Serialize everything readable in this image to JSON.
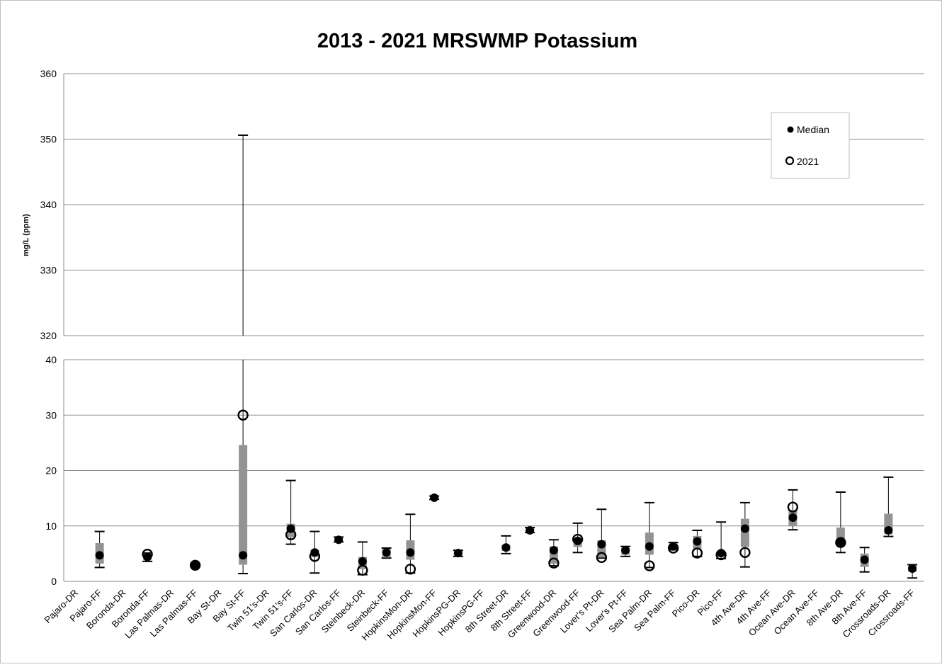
{
  "chart_data": {
    "type": "boxplot",
    "title": "2013 - 2021 MRSWMP Potassium",
    "ylabel": "mg/L (ppm)",
    "xlabel": "",
    "y_axis": {
      "broken": true,
      "upper_range": [
        320,
        360
      ],
      "upper_ticks": [
        "360",
        "350",
        "340",
        "330",
        "320"
      ],
      "lower_range": [
        0,
        40
      ],
      "lower_ticks": [
        "40",
        "30",
        "20",
        "10",
        "0"
      ]
    },
    "grid": true,
    "legend": {
      "placement": "top-right",
      "entries": [
        {
          "label": "Median",
          "marker": "filled-circle"
        },
        {
          "label": "2021",
          "marker": "open-circle"
        }
      ]
    },
    "categories": [
      "Pajaro-DR",
      "Pajaro-FF",
      "Boronda-DR",
      "Boronda-FF",
      "Las Palmas-DR",
      "Las Palmas-FF",
      "Bay St-DR",
      "Bay St-FF",
      "Twin 51's-DR",
      "Twin 51's-FF",
      "San Carlos-DR",
      "San Carlos-FF",
      "Steinbeck-DR",
      "Steinbeck-FF",
      "HopkinsMon-DR",
      "HopkinsMon-FF",
      "HopkinsPG-DR",
      "HopkinsPG-FF",
      "8th Street-DR",
      "8th Street-FF",
      "Greenwood-DR",
      "Greenwood-FF",
      "Lover's Pt-DR",
      "Lover's Pt-FF",
      "Sea Palm-DR",
      "Sea Palm-FF",
      "Pico-DR",
      "Pico-FF",
      "4th Ave-DR",
      "4th Ave-FF",
      "Ocean Ave-DR",
      "Ocean Ave-FF",
      "8th Ave-DR",
      "8th Ave-FF",
      "Crossroads-DR",
      "Crossroads-FF"
    ],
    "series": [
      {
        "name": "Median",
        "values": [
          null,
          4.7,
          null,
          4.4,
          null,
          2.9,
          null,
          4.7,
          null,
          9.5,
          5.2,
          7.5,
          3.6,
          5.2,
          5.2,
          15.1,
          5.1,
          null,
          6.1,
          9.2,
          5.6,
          7.3,
          6.7,
          5.6,
          6.3,
          6.3,
          7.2,
          5.1,
          9.5,
          null,
          11.5,
          null,
          7.0,
          3.9,
          9.2,
          2.3
        ]
      },
      {
        "name": "2021",
        "values": [
          null,
          null,
          null,
          4.9,
          null,
          2.9,
          null,
          30.0,
          null,
          8.4,
          4.5,
          null,
          2.0,
          null,
          2.2,
          null,
          null,
          null,
          null,
          null,
          3.3,
          7.6,
          4.3,
          null,
          2.8,
          6.0,
          5.1,
          4.8,
          5.2,
          null,
          13.4,
          null,
          7.0,
          null,
          null,
          null
        ]
      },
      {
        "name": "Q1",
        "values": [
          null,
          3.2,
          null,
          3.9,
          null,
          2.7,
          null,
          3.0,
          null,
          8.0,
          4.4,
          7.2,
          2.2,
          4.3,
          3.9,
          14.9,
          4.6,
          null,
          5.5,
          8.9,
          3.2,
          6.2,
          4.3,
          4.8,
          4.8,
          5.8,
          5.8,
          4.5,
          6.2,
          null,
          10.0,
          null,
          6.2,
          2.6,
          8.5,
          1.7
        ]
      },
      {
        "name": "Q3",
        "values": [
          null,
          6.9,
          null,
          4.7,
          null,
          3.1,
          null,
          24.6,
          null,
          10.4,
          5.7,
          7.8,
          4.4,
          5.8,
          7.4,
          15.3,
          5.4,
          null,
          6.6,
          9.5,
          6.3,
          7.8,
          7.4,
          6.0,
          8.8,
          6.8,
          8.2,
          5.4,
          11.3,
          null,
          12.9,
          null,
          9.7,
          5.0,
          12.2,
          2.8
        ]
      },
      {
        "name": "Min",
        "values": [
          null,
          2.5,
          null,
          3.6,
          null,
          2.6,
          null,
          1.4,
          null,
          6.7,
          1.5,
          7.1,
          1.2,
          4.2,
          1.5,
          14.8,
          4.5,
          null,
          5.0,
          8.8,
          2.8,
          5.2,
          4.2,
          4.5,
          2.5,
          5.7,
          4.5,
          4.1,
          2.6,
          null,
          9.3,
          null,
          5.2,
          1.7,
          8.1,
          0.6
        ]
      },
      {
        "name": "Max",
        "values": [
          null,
          9.0,
          null,
          5.1,
          null,
          3.2,
          null,
          350.6,
          null,
          18.2,
          9.0,
          8.0,
          7.1,
          6.0,
          12.1,
          15.4,
          5.6,
          null,
          8.2,
          9.7,
          7.5,
          10.5,
          13.0,
          6.3,
          14.2,
          7.0,
          9.2,
          10.7,
          14.2,
          null,
          16.5,
          null,
          16.1,
          6.1,
          18.8,
          3.0
        ]
      }
    ]
  }
}
